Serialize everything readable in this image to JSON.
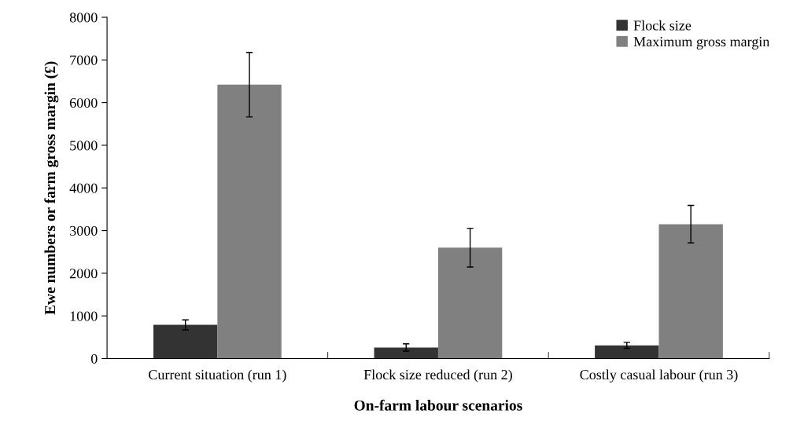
{
  "chart_data": {
    "type": "bar",
    "xlabel": "On-farm labour scenarios",
    "ylabel": "Ewe numbers or farm gross margin (£)",
    "categories": [
      "Current situation (run 1)",
      "Flock size reduced (run 2)",
      "Costly casual labour (run 3)"
    ],
    "series": [
      {
        "name": "Flock size",
        "color": "#333333",
        "values": [
          790,
          260,
          310
        ],
        "errors": [
          117,
          86,
          70
        ]
      },
      {
        "name": "Maximum gross margin",
        "color": "#808080",
        "values": [
          6420,
          2600,
          3150
        ],
        "errors": [
          755,
          455,
          440
        ]
      }
    ],
    "ylim": [
      0,
      8000
    ],
    "yticks": [
      0,
      1000,
      2000,
      3000,
      4000,
      5000,
      6000,
      7000,
      8000
    ],
    "grid": false,
    "legend": "top right"
  }
}
